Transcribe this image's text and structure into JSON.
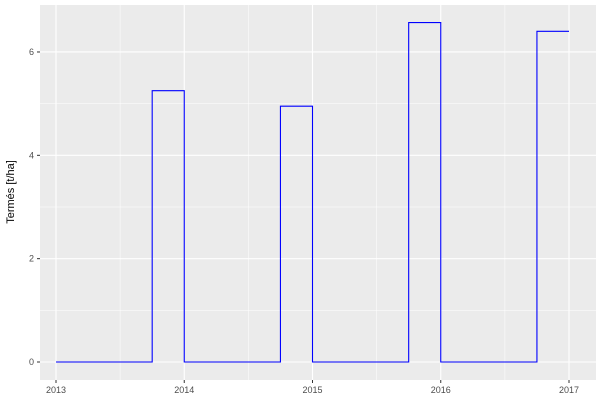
{
  "chart_data": {
    "type": "line",
    "step": true,
    "title": "",
    "xlabel": "",
    "ylabel": "Termés [t/ha]",
    "xlim": [
      2012.9,
      2017.2
    ],
    "ylim": [
      -0.33,
      6.9
    ],
    "x_ticks": [
      2013,
      2014,
      2015,
      2016,
      2017
    ],
    "x_tick_labels": [
      "2013",
      "2014",
      "2015",
      "2016",
      "2017"
    ],
    "y_ticks": [
      0,
      2,
      4,
      6
    ],
    "y_tick_labels": [
      "0",
      "2",
      "4",
      "6"
    ],
    "grid": true,
    "line_color": "#0000FF",
    "panel_background": "#EBEBEB",
    "series": [
      {
        "x": [
          2013.0,
          2013.75,
          2014.0,
          2014.75,
          2015.0,
          2015.75,
          2016.0,
          2016.75,
          2017.0
        ],
        "y": [
          0,
          5.25,
          0,
          4.95,
          0,
          6.57,
          0,
          6.4,
          6.4
        ]
      }
    ]
  }
}
